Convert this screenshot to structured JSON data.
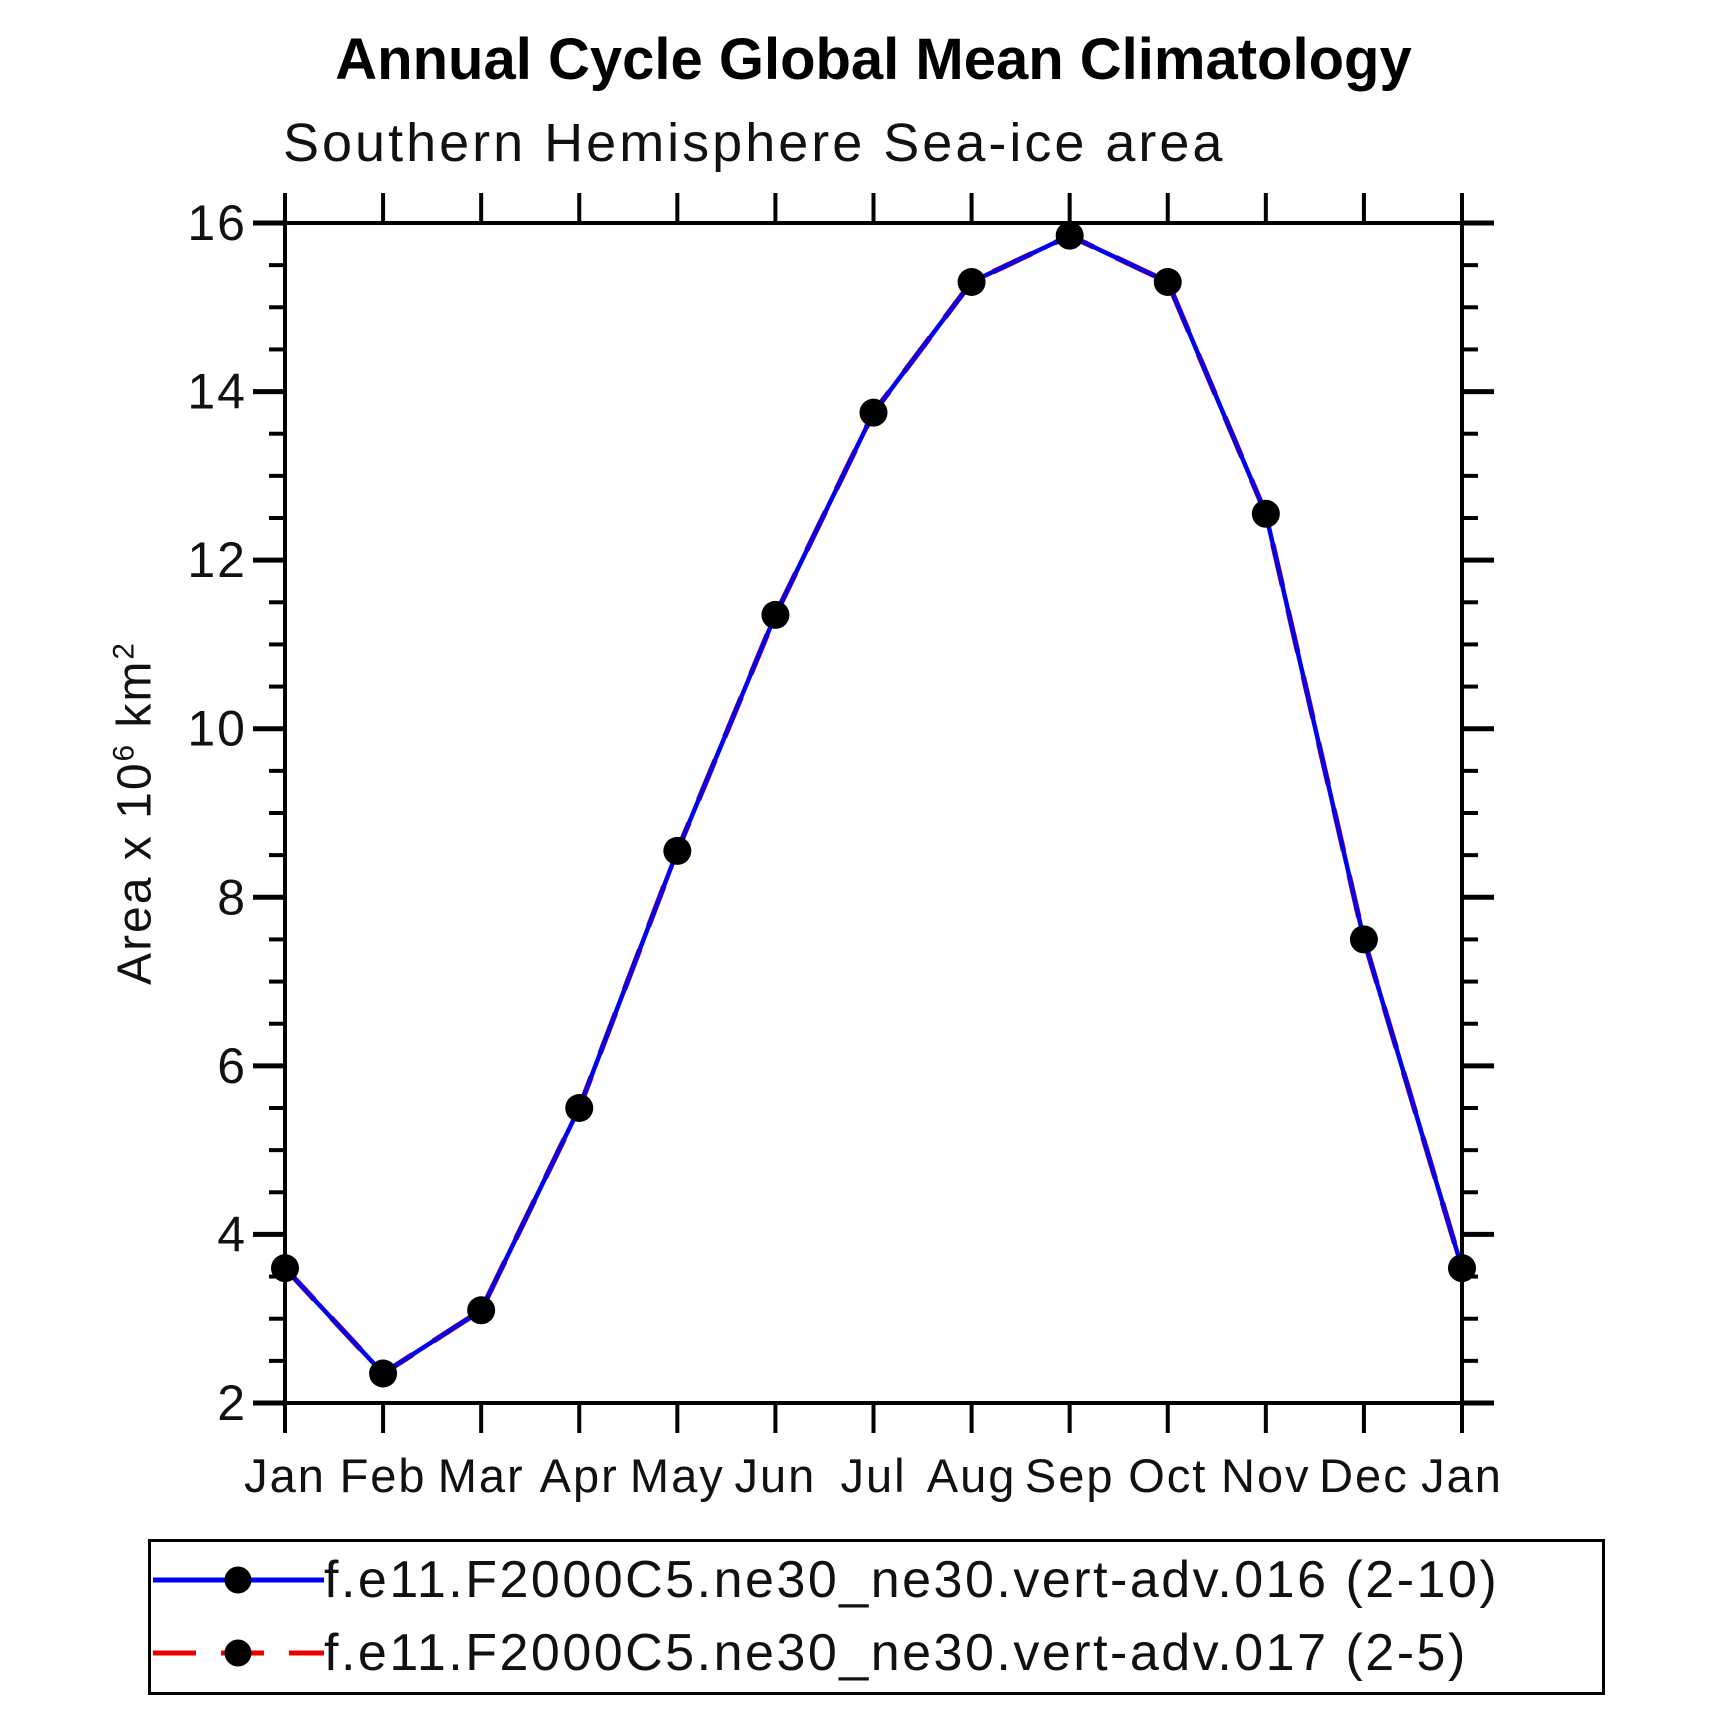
{
  "page": {
    "title": "Annual Cycle Global Mean Climatology",
    "subtitle": "Southern Hemisphere Sea-ice area"
  },
  "chart_data": {
    "type": "line",
    "title": "Annual Cycle Global Mean Climatology",
    "subtitle": "Southern Hemisphere Sea-ice area",
    "ylabel": "Area x 10^6 km^2",
    "ylabel_parts": {
      "prefix": "Area x 10",
      "sup1": "6",
      "mid": " km",
      "sup2": "2"
    },
    "categories": [
      "Jan",
      "Feb",
      "Mar",
      "Apr",
      "May",
      "Jun",
      "Jul",
      "Aug",
      "Sep",
      "Oct",
      "Nov",
      "Dec",
      "Jan"
    ],
    "series": [
      {
        "name": "f.e11.F2000C5.ne30_ne30.vert-adv.016 (2-10)",
        "color": "#0000ee",
        "style": "solid",
        "marker": "filled-circle",
        "marker_color": "#000000",
        "values": [
          3.6,
          2.35,
          3.1,
          5.5,
          8.55,
          11.35,
          13.75,
          15.3,
          15.85,
          15.3,
          12.55,
          7.5,
          3.6
        ]
      },
      {
        "name": "f.e11.F2000C5.ne30_ne30.vert-adv.017 (2-5)",
        "color": "#ee0000",
        "style": "dashed",
        "marker": "filled-circle",
        "marker_color": "#000000",
        "values": [
          3.6,
          2.35,
          3.1,
          5.5,
          8.55,
          11.35,
          13.75,
          15.3,
          15.85,
          15.3,
          12.55,
          7.5,
          3.6
        ]
      }
    ],
    "ylim": [
      2,
      16
    ],
    "y_major_step": 2,
    "y_minor_step": 0.5,
    "grid": "off",
    "legend_position": "bottom",
    "axis_color": "#000000",
    "note": "red dashed series .017 lies exactly beneath blue series .016"
  }
}
